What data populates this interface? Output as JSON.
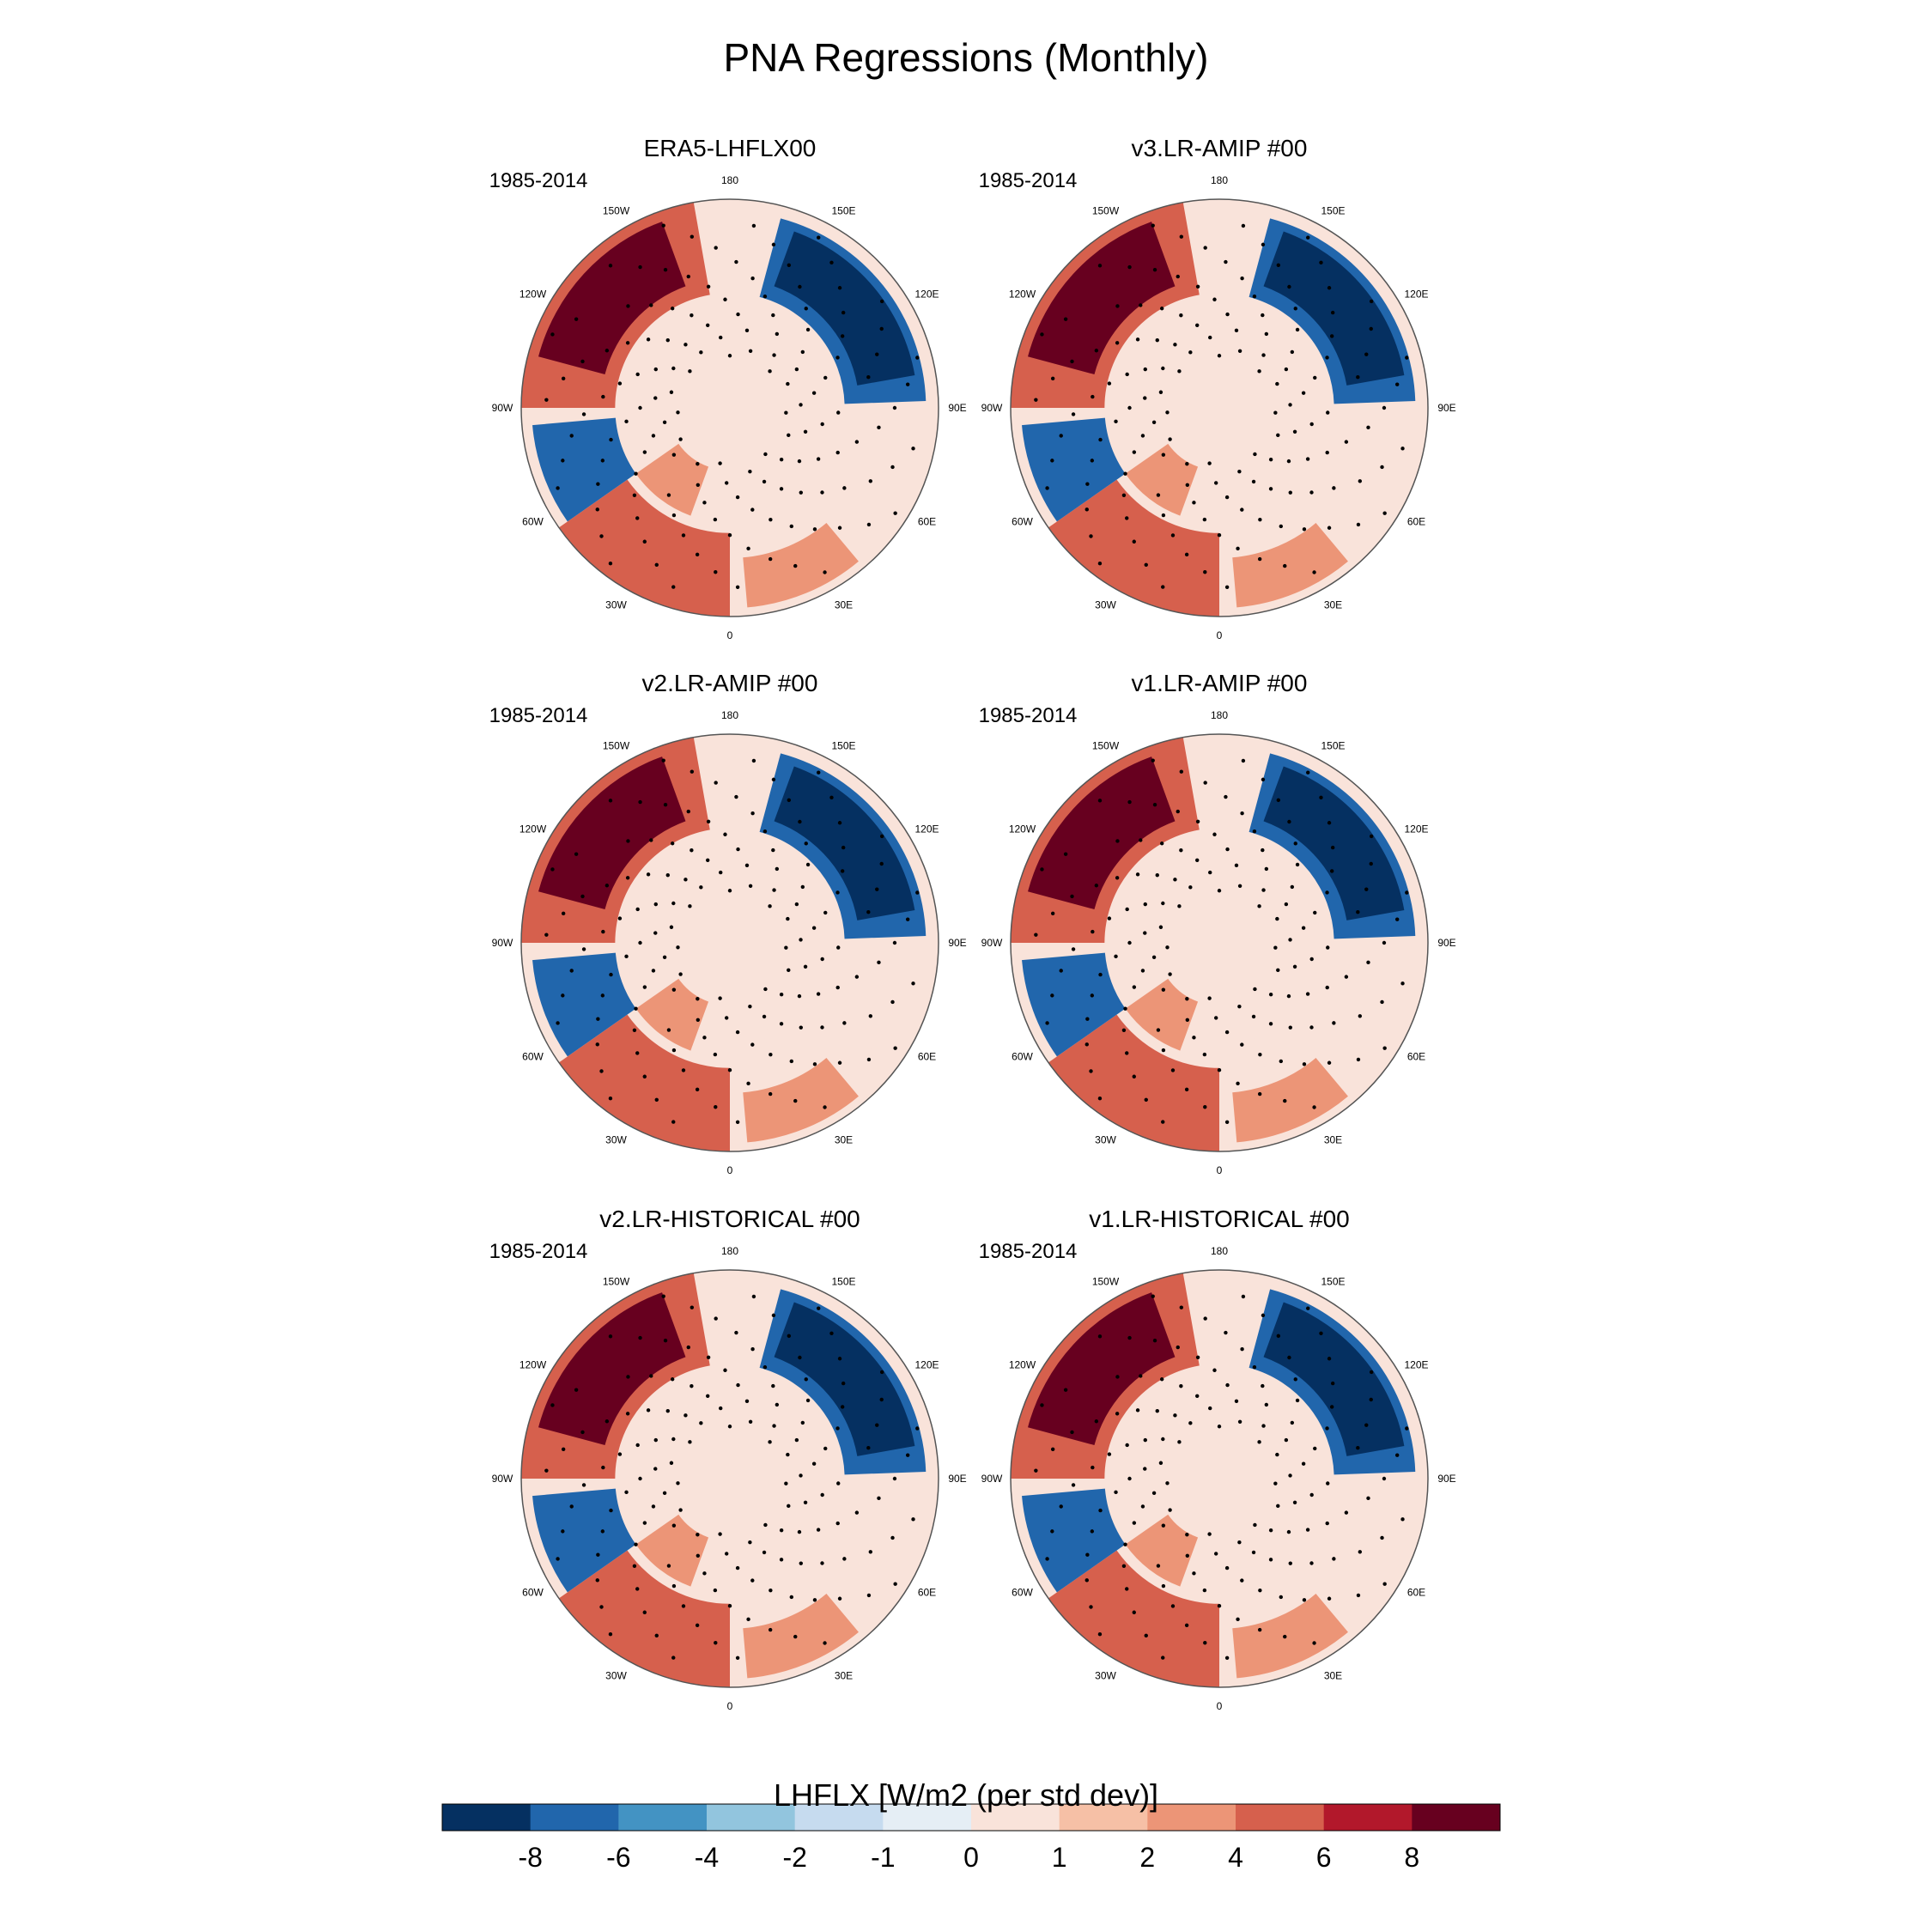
{
  "figure": {
    "title": "PNA Regressions (Monthly)"
  },
  "colorbar": {
    "label": "LHFLX [W/m2 (per std dev)]",
    "tick_labels": [
      "-8",
      "-6",
      "-4",
      "-2",
      "-1",
      "0",
      "1",
      "2",
      "4",
      "6",
      "8"
    ],
    "colors": [
      "#053061",
      "#2166ac",
      "#4393c3",
      "#92c5de",
      "#c6dbef",
      "#e5eef5",
      "#f9e3da",
      "#f6c0a6",
      "#ec9577",
      "#d6604d",
      "#b2182b",
      "#67001f"
    ]
  },
  "map_labels": {
    "lon_labels": [
      "180",
      "150E",
      "120E",
      "90E",
      "60E",
      "30E",
      "0",
      "30W",
      "60W",
      "90W",
      "120W",
      "150W"
    ]
  },
  "chart_data": [
    {
      "type": "heatmap",
      "projection": "north-polar-stereographic",
      "title": "ERA5-LHFLX00",
      "period": "1985-2014",
      "value_range": [
        -8,
        8
      ],
      "stippling": "significance"
    },
    {
      "type": "heatmap",
      "projection": "north-polar-stereographic",
      "title": "v3.LR-AMIP  #00",
      "period": "1985-2014",
      "value_range": [
        -8,
        8
      ],
      "stippling": "significance"
    },
    {
      "type": "heatmap",
      "projection": "north-polar-stereographic",
      "title": "v2.LR-AMIP  #00",
      "period": "1985-2014",
      "value_range": [
        -8,
        8
      ],
      "stippling": "significance"
    },
    {
      "type": "heatmap",
      "projection": "north-polar-stereographic",
      "title": "v1.LR-AMIP  #00",
      "period": "1985-2014",
      "value_range": [
        -8,
        8
      ],
      "stippling": "significance"
    },
    {
      "type": "heatmap",
      "projection": "north-polar-stereographic",
      "title": "v2.LR-HISTORICAL  #00",
      "period": "1985-2014",
      "value_range": [
        -8,
        8
      ],
      "stippling": "significance"
    },
    {
      "type": "heatmap",
      "projection": "north-polar-stereographic",
      "title": "v1.LR-HISTORICAL  #00",
      "period": "1985-2014",
      "value_range": [
        -8,
        8
      ],
      "stippling": "significance"
    }
  ]
}
